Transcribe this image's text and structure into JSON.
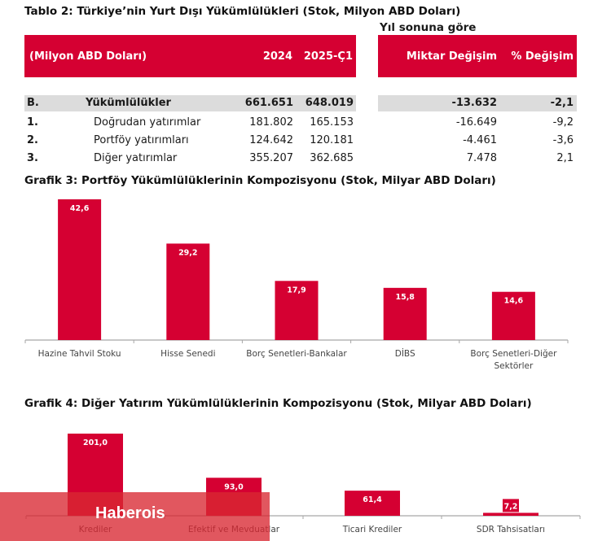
{
  "table": {
    "title": "Tablo 2: Türkiye’nin Yurt Dışı Yükümlülükleri (Stok, Milyon ABD Doları)",
    "group_header": "Yıl sonuna göre",
    "headers": {
      "unit": "(Milyon ABD Doları)",
      "col_2024": "2024",
      "col_2025": "2025-Ç1",
      "col_amount": "Miktar Değişim",
      "col_pct": "% Değişim"
    },
    "rows": [
      {
        "code": "B.",
        "label": "Yükümlülükler",
        "v2024": "661.651",
        "v2025": "648.019",
        "amount": "-13.632",
        "pct": "-2,1",
        "total": true
      },
      {
        "code": "1.",
        "label": "Doğrudan yatırımlar",
        "v2024": "181.802",
        "v2025": "165.153",
        "amount": "-16.649",
        "pct": "-9,2"
      },
      {
        "code": "2.",
        "label": "Portföy yatırımları",
        "v2024": "124.642",
        "v2025": "120.181",
        "amount": "-4.461",
        "pct": "-3,6"
      },
      {
        "code": "3.",
        "label": "Diğer yatırımlar",
        "v2024": "355.207",
        "v2025": "362.685",
        "amount": "7.478",
        "pct": "2,1"
      }
    ]
  },
  "colors": {
    "accent": "#d50032",
    "total_row_bg": "#dcdcdc",
    "axis": "#a6a6a6",
    "watermark": "#d82832"
  },
  "chart_data": [
    {
      "type": "bar",
      "title": "Grafik 3: Portföy Yükümlülüklerinin Kompozisyonu (Stok, Milyar ABD Doları)",
      "categories": [
        "Hazine Tahvil Stoku",
        "Hisse Senedi",
        "Borç Senetleri-Bankalar",
        "DİBS",
        "Borç Senetleri-Diğer Sektörler"
      ],
      "category_lines": [
        [
          "Hazine Tahvil Stoku"
        ],
        [
          "Hisse Senedi"
        ],
        [
          "Borç Senetleri-Bankalar"
        ],
        [
          "DİBS"
        ],
        [
          "Borç Senetleri-Diğer",
          "Sektörler"
        ]
      ],
      "values": [
        42.6,
        29.2,
        17.9,
        15.8,
        14.6
      ],
      "value_labels": [
        "42,6",
        "29,2",
        "17,9",
        "15,8",
        "14,6"
      ],
      "xlabel": "",
      "ylabel": "",
      "ylim": [
        0,
        42.6
      ],
      "grid": false
    },
    {
      "type": "bar",
      "title": "Grafik 4: Diğer Yatırım Yükümlülüklerinin Kompozisyonu (Stok, Milyar ABD Doları)",
      "categories": [
        "Krediler",
        "Efektif ve Mevduatlar",
        "Ticari Krediler",
        "SDR Tahsisatları"
      ],
      "category_lines": [
        [
          "Krediler"
        ],
        [
          "Efektif ve Mevduatlar"
        ],
        [
          "Ticari Krediler"
        ],
        [
          "SDR Tahsisatları"
        ]
      ],
      "values": [
        201.0,
        93.0,
        61.4,
        7.2
      ],
      "value_labels": [
        "201,0",
        "93,0",
        "61,4",
        "7,2"
      ],
      "xlabel": "",
      "ylabel": "",
      "ylim": [
        0,
        201.0
      ],
      "grid": false
    }
  ],
  "watermark": {
    "text": "Haberois"
  }
}
